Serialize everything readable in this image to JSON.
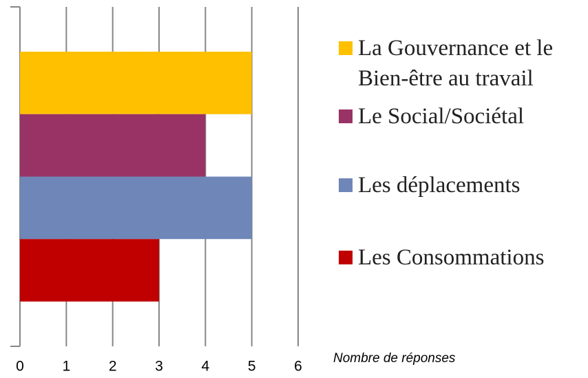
{
  "chart_data": {
    "type": "bar",
    "orientation": "horizontal",
    "categories": [
      null
    ],
    "series": [
      {
        "name": "La Gouvernance et le Bien-être au travail",
        "color": "#ffc000",
        "values": [
          5
        ]
      },
      {
        "name": "Le Social/Sociétal",
        "color": "#993366",
        "values": [
          4
        ]
      },
      {
        "name": "Les déplacements",
        "color": "#6f86b8",
        "values": [
          5
        ]
      },
      {
        "name": "Les Consommations",
        "color": "#c00000",
        "values": [
          3
        ]
      }
    ],
    "xlabel": "Nombre de réponses",
    "xlim": [
      0,
      6
    ],
    "xticks": [
      0,
      1,
      2,
      3,
      4,
      5,
      6
    ],
    "grid": true,
    "legend": "right"
  }
}
